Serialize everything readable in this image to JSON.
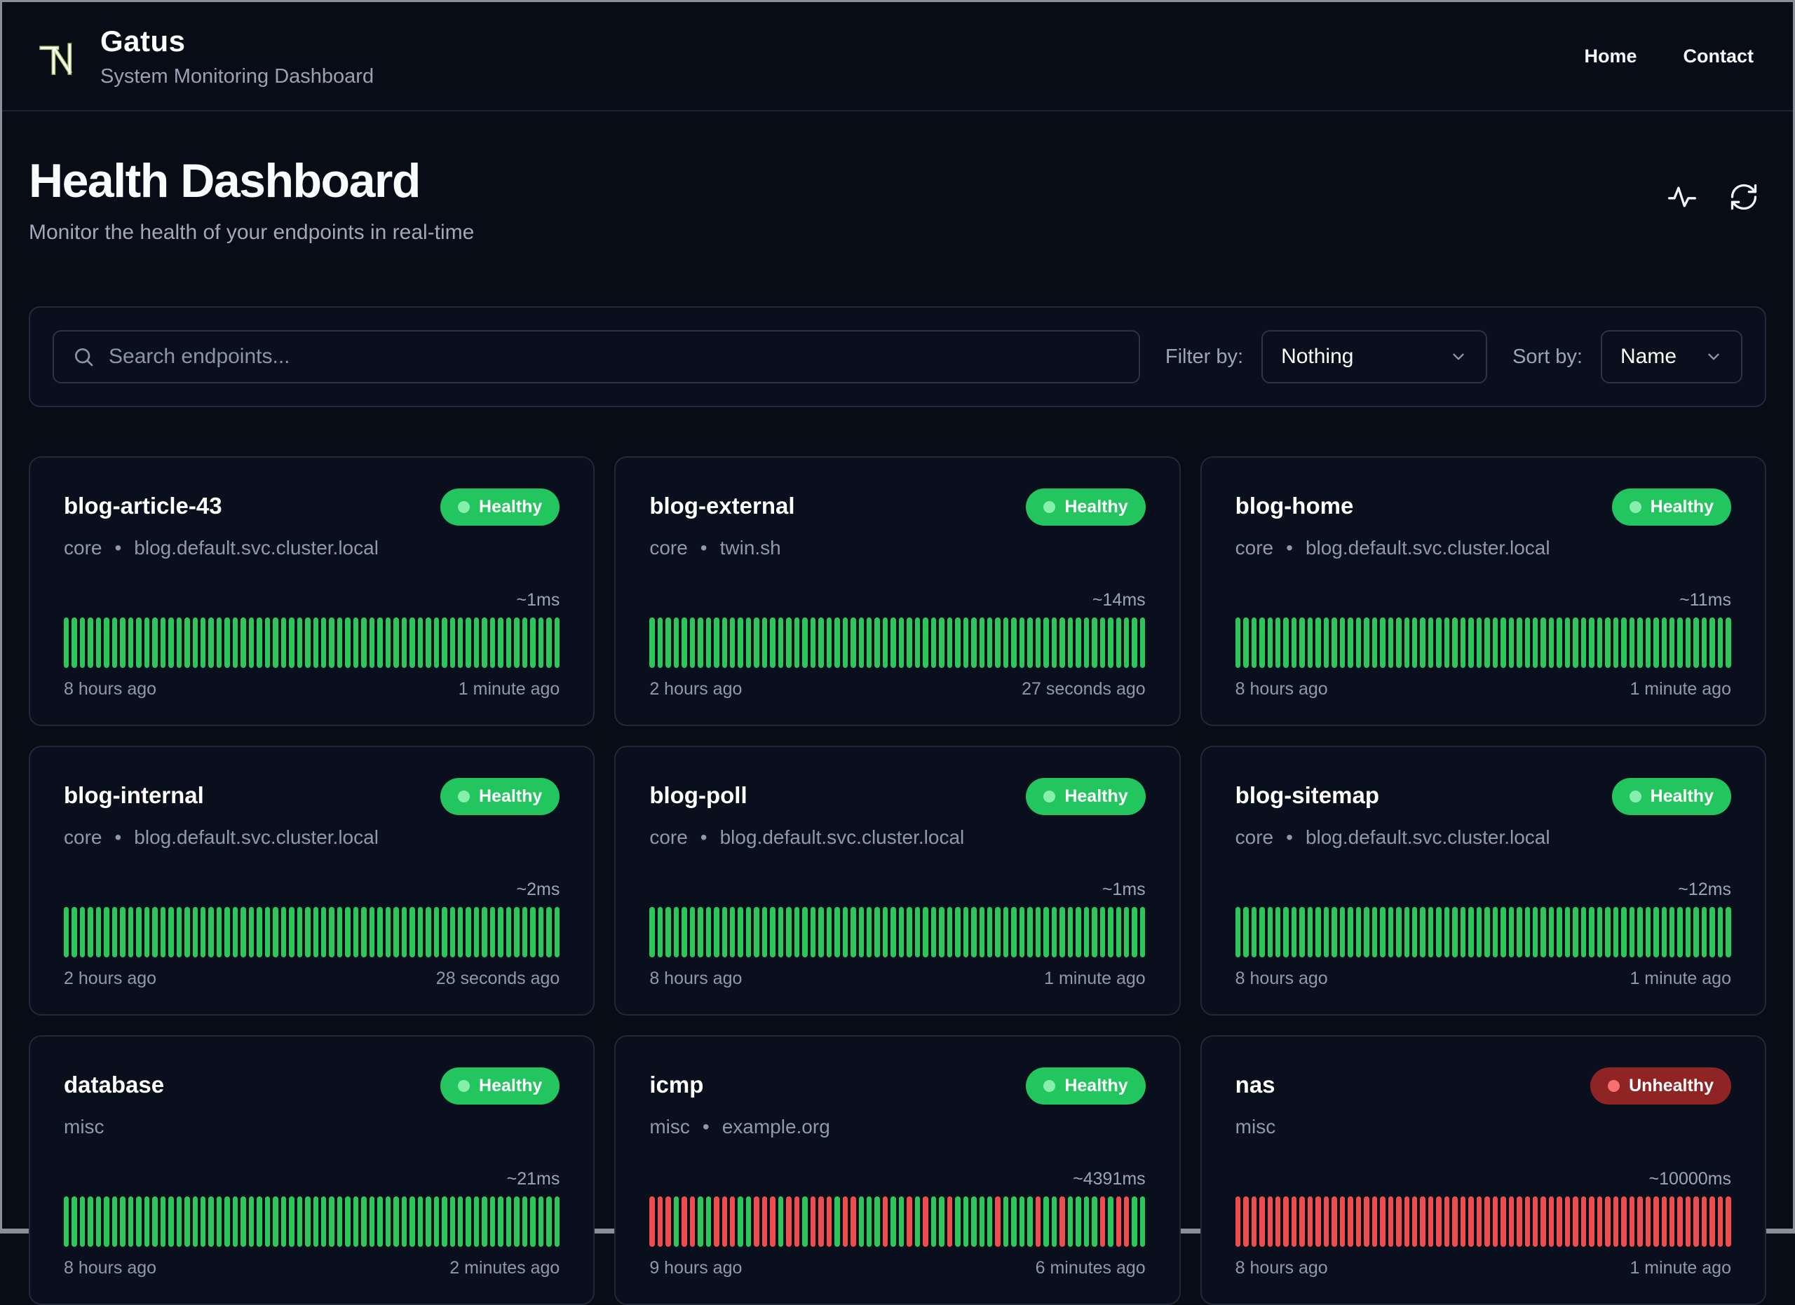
{
  "header": {
    "app_name": "Gatus",
    "app_subtitle": "System Monitoring Dashboard",
    "logo_icon": "tn-monogram",
    "nav": [
      {
        "label": "Home"
      },
      {
        "label": "Contact"
      }
    ]
  },
  "page": {
    "title": "Health Dashboard",
    "subtitle": "Monitor the health of your endpoints in real-time"
  },
  "toolbar": {
    "search_placeholder": "Search endpoints...",
    "search_icon": "magnifier",
    "filter_label": "Filter by:",
    "filter_value": "Nothing",
    "sort_label": "Sort by:",
    "sort_value": "Name",
    "chevron_icon": "chevron-down"
  },
  "actions": {
    "activity_icon": "pulse-line",
    "refresh_icon": "circular-arrows"
  },
  "status_labels": {
    "healthy": "Healthy",
    "unhealthy": "Unhealthy"
  },
  "separator": "•",
  "cards": [
    {
      "name": "blog-article-43",
      "group": "core",
      "host": "blog.default.svc.cluster.local",
      "status": "healthy",
      "latency": "~1ms",
      "oldest": "8 hours ago",
      "newest": "1 minute ago",
      "bars": {
        "count": 62,
        "pattern": "G"
      }
    },
    {
      "name": "blog-external",
      "group": "core",
      "host": "twin.sh",
      "status": "healthy",
      "latency": "~14ms",
      "oldest": "2 hours ago",
      "newest": "27 seconds ago",
      "bars": {
        "count": 62,
        "pattern": "G"
      }
    },
    {
      "name": "blog-home",
      "group": "core",
      "host": "blog.default.svc.cluster.local",
      "status": "healthy",
      "latency": "~11ms",
      "oldest": "8 hours ago",
      "newest": "1 minute ago",
      "bars": {
        "count": 62,
        "pattern": "G"
      }
    },
    {
      "name": "blog-internal",
      "group": "core",
      "host": "blog.default.svc.cluster.local",
      "status": "healthy",
      "latency": "~2ms",
      "oldest": "2 hours ago",
      "newest": "28 seconds ago",
      "bars": {
        "count": 62,
        "pattern": "G"
      }
    },
    {
      "name": "blog-poll",
      "group": "core",
      "host": "blog.default.svc.cluster.local",
      "status": "healthy",
      "latency": "~1ms",
      "oldest": "8 hours ago",
      "newest": "1 minute ago",
      "bars": {
        "count": 62,
        "pattern": "G"
      }
    },
    {
      "name": "blog-sitemap",
      "group": "core",
      "host": "blog.default.svc.cluster.local",
      "status": "healthy",
      "latency": "~12ms",
      "oldest": "8 hours ago",
      "newest": "1 minute ago",
      "bars": {
        "count": 62,
        "pattern": "G"
      }
    },
    {
      "name": "database",
      "group": "misc",
      "host": "",
      "status": "healthy",
      "latency": "~21ms",
      "oldest": "8 hours ago",
      "newest": "2 minutes ago",
      "bars": {
        "count": 62,
        "pattern": "G"
      }
    },
    {
      "name": "icmp",
      "group": "misc",
      "host": "example.org",
      "status": "healthy",
      "latency": "~4391ms",
      "oldest": "9 hours ago",
      "newest": "6 minutes ago",
      "bars": {
        "count": 62,
        "pattern": "RRRGRRGGRRRGGRRRGRRGRRRGRRGGGRGGRGRGGRGGGGGRGGGGRGGRGGGGRGRRGG"
      }
    },
    {
      "name": "nas",
      "group": "misc",
      "host": "",
      "status": "unhealthy",
      "latency": "~10000ms",
      "oldest": "8 hours ago",
      "newest": "1 minute ago",
      "bars": {
        "count": 62,
        "pattern": "R"
      }
    }
  ],
  "colors": {
    "bar_green": "#2dc65b",
    "bar_red": "#ef4d4d",
    "healthy_badge": "#22c55e",
    "healthy_dot": "#86efac",
    "unhealthy_badge": "#8e2424",
    "unhealthy_dot": "#f87171",
    "logo_accent": "#b9cc79",
    "page_background": "#080c17",
    "card_background": "#0a0f1d"
  }
}
